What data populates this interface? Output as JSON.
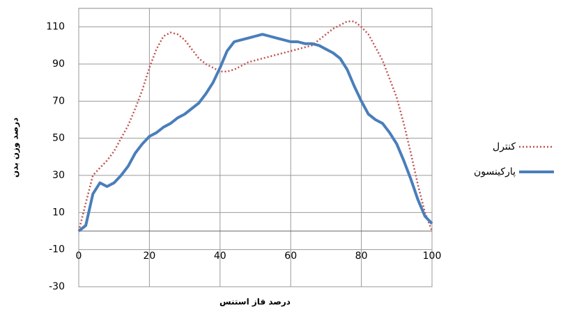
{
  "chart_data": {
    "type": "line",
    "x_label": "درصد فاز استنس",
    "y_label": "درصد وزن بدن",
    "x": [
      0,
      2,
      4,
      6,
      8,
      10,
      12,
      14,
      16,
      18,
      20,
      22,
      24,
      26,
      28,
      30,
      32,
      34,
      36,
      38,
      40,
      42,
      44,
      46,
      48,
      50,
      52,
      54,
      56,
      58,
      60,
      62,
      64,
      66,
      68,
      70,
      72,
      74,
      76,
      78,
      80,
      82,
      84,
      86,
      88,
      90,
      92,
      94,
      96,
      98,
      100
    ],
    "series": [
      {
        "name": "کنترل",
        "color": "#c0504d",
        "dash": "dotted",
        "values": [
          0,
          15,
          30,
          34,
          38,
          43,
          50,
          57,
          66,
          76,
          88,
          98,
          105,
          107,
          106,
          103,
          98,
          93,
          90,
          88,
          86,
          86,
          87,
          89,
          91,
          92,
          93,
          94,
          95,
          96,
          97,
          98,
          99,
          100,
          103,
          106,
          109,
          111,
          113,
          113,
          110,
          106,
          99,
          92,
          82,
          72,
          58,
          42,
          25,
          10,
          0
        ]
      },
      {
        "name": "پارکینسون",
        "color": "#4a7ebb",
        "dash": "solid",
        "values": [
          0,
          3,
          20,
          26,
          24,
          26,
          30,
          35,
          42,
          47,
          51,
          53,
          56,
          58,
          61,
          63,
          66,
          69,
          74,
          80,
          88,
          97,
          102,
          103,
          104,
          105,
          106,
          105,
          104,
          103,
          102,
          102,
          101,
          101,
          100,
          98,
          96,
          93,
          87,
          78,
          70,
          63,
          60,
          58,
          53,
          47,
          38,
          28,
          17,
          8,
          4
        ]
      }
    ],
    "xlim": [
      0,
      100
    ],
    "xticks": [
      0,
      20,
      40,
      60,
      80,
      100
    ],
    "ylim": [
      -30,
      120
    ],
    "yticks": [
      -30,
      -10,
      10,
      30,
      50,
      70,
      90,
      110
    ],
    "grid": true,
    "legend": "right"
  }
}
